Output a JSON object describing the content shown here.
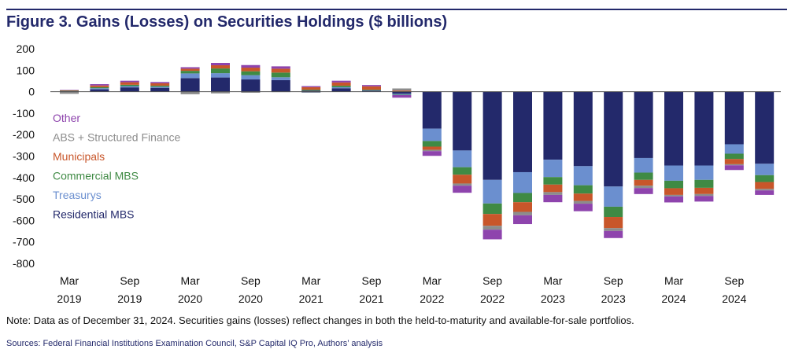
{
  "title": "Figure 3. Gains (Losses) on Securities Holdings ($ billions)",
  "note": "Note: Data as of December 31, 2024. Securities gains (losses) reflect changes in both the held-to-maturity and available-for-sale portfolios.",
  "sources": "Sources: Federal Financial Institutions Examination Council, S&P Capital IQ Pro, Authors’ analysis",
  "chart_data": {
    "type": "bar",
    "stacked": true,
    "ylim": [
      -800,
      200
    ],
    "yticks": [
      200,
      100,
      0,
      -100,
      -200,
      -300,
      -400,
      -500,
      -600,
      -700,
      -800
    ],
    "legend_position": "left",
    "grid": false,
    "categories": [
      "Q1 2019",
      "Q2 2019",
      "Q3 2019",
      "Q4 2019",
      "Q1 2020",
      "Q2 2020",
      "Q3 2020",
      "Q4 2020",
      "Q1 2021",
      "Q2 2021",
      "Q3 2021",
      "Q4 2021",
      "Q1 2022",
      "Q2 2022",
      "Q3 2022",
      "Q4 2022",
      "Q1 2023",
      "Q2 2023",
      "Q3 2023",
      "Q4 2023",
      "Q1 2024",
      "Q2 2024",
      "Q3 2024",
      "Q4 2024"
    ],
    "xtick_labels": [
      {
        "month": "Mar",
        "year": "2019"
      },
      {
        "month": "Sep",
        "year": "2019"
      },
      {
        "month": "Mar",
        "year": "2020"
      },
      {
        "month": "Sep",
        "year": "2020"
      },
      {
        "month": "Mar",
        "year": "2021"
      },
      {
        "month": "Sep",
        "year": "2021"
      },
      {
        "month": "Mar",
        "year": "2022"
      },
      {
        "month": "Sep",
        "year": "2022"
      },
      {
        "month": "Mar",
        "year": "2023"
      },
      {
        "month": "Sep",
        "year": "2023"
      },
      {
        "month": "Mar",
        "year": "2024"
      },
      {
        "month": "Sep",
        "year": "2024"
      }
    ],
    "series": [
      {
        "name": "Residential MBS",
        "color": "#23296b",
        "values": [
          2,
          11,
          20,
          18,
          63,
          66,
          57,
          54,
          5,
          16,
          4,
          -10,
          -172,
          -274,
          -411,
          -375,
          -317,
          -347,
          -442,
          -309,
          -344,
          -344,
          -245,
          -336
        ]
      },
      {
        "name": "Treasurys",
        "color": "#6b8fcf",
        "values": [
          1,
          5,
          6,
          5,
          22,
          20,
          20,
          13,
          -3,
          5,
          2,
          -4,
          -58,
          -78,
          -110,
          -97,
          -81,
          -89,
          -94,
          -68,
          -71,
          -67,
          -44,
          -53
        ]
      },
      {
        "name": "Commercial MBS",
        "color": "#3f8a44",
        "values": [
          1,
          5,
          6,
          5,
          12,
          22,
          18,
          22,
          4,
          7,
          3,
          -2,
          -26,
          -35,
          -49,
          -43,
          -35,
          -39,
          -48,
          -34,
          -35,
          -37,
          -25,
          -32
        ]
      },
      {
        "name": "Municipals",
        "color": "#c8562a",
        "values": [
          2,
          8,
          12,
          11,
          10,
          15,
          17,
          18,
          12,
          15,
          16,
          5,
          -15,
          -41,
          -55,
          -45,
          -35,
          -34,
          -52,
          -27,
          -31,
          -29,
          -24,
          -32
        ]
      },
      {
        "name": "ABS + Structured Finance",
        "color": "#8c8c8c",
        "values": [
          -10,
          0,
          0,
          0,
          -12,
          -8,
          -5,
          -2,
          -2,
          0,
          0,
          10,
          -6,
          -10,
          -18,
          -16,
          -13,
          -13,
          -13,
          -11,
          -7,
          -9,
          -5,
          -7
        ]
      },
      {
        "name": "Other",
        "color": "#8e44ad",
        "values": [
          2,
          6,
          7,
          6,
          7,
          11,
          12,
          11,
          5,
          8,
          6,
          -12,
          -22,
          -33,
          -45,
          -41,
          -34,
          -35,
          -33,
          -28,
          -28,
          -26,
          -22,
          -21
        ]
      }
    ]
  }
}
